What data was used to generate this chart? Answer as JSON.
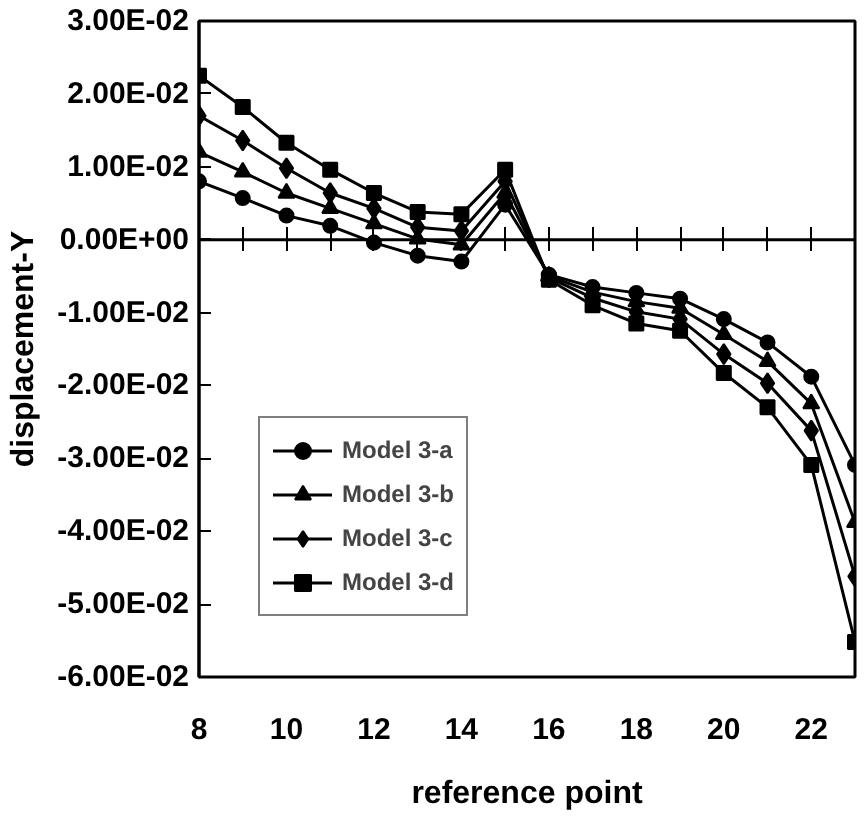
{
  "chart_data": {
    "type": "line",
    "xlabel": "reference point",
    "ylabel": "displacement-Y",
    "x": [
      8,
      9,
      10,
      11,
      12,
      13,
      14,
      15,
      16,
      17,
      18,
      19,
      20,
      21,
      22,
      23
    ],
    "series": [
      {
        "name": "Model 3-a",
        "color": "#000000",
        "marker": "circle",
        "values": [
          0.008,
          0.0057,
          0.0033,
          0.0019,
          -0.0004,
          -0.0022,
          -0.003,
          0.0048,
          -0.0048,
          -0.0065,
          -0.0073,
          -0.0081,
          -0.0109,
          -0.0141,
          -0.0188,
          -0.0309
        ]
      },
      {
        "name": "Model 3-b",
        "color": "#000000",
        "marker": "triangle",
        "values": [
          0.012,
          0.0093,
          0.0064,
          0.0043,
          0.0022,
          0.0001,
          -0.0007,
          0.0064,
          -0.005,
          -0.0072,
          -0.0085,
          -0.0094,
          -0.013,
          -0.0167,
          -0.0225,
          -0.0388
        ]
      },
      {
        "name": "Model 3-c",
        "color": "#000000",
        "marker": "diamond",
        "values": [
          0.017,
          0.0136,
          0.0098,
          0.0064,
          0.0043,
          0.0017,
          0.0012,
          0.008,
          -0.0052,
          -0.008,
          -0.0099,
          -0.0109,
          -0.0157,
          -0.0197,
          -0.0262,
          -0.0462
        ]
      },
      {
        "name": "Model 3-d",
        "color": "#000000",
        "marker": "square",
        "values": [
          0.0225,
          0.0182,
          0.0133,
          0.0096,
          0.0064,
          0.0038,
          0.0035,
          0.0096,
          -0.0055,
          -0.009,
          -0.0115,
          -0.0125,
          -0.0183,
          -0.023,
          -0.0309,
          -0.0552
        ]
      }
    ],
    "xlim": [
      8,
      23
    ],
    "xticks": [
      8,
      10,
      12,
      14,
      16,
      18,
      20,
      22
    ],
    "ylim": [
      -0.06,
      0.03
    ],
    "yticks": [
      {
        "value": 0.03,
        "label": "3.00E-02"
      },
      {
        "value": 0.02,
        "label": "2.00E-02"
      },
      {
        "value": 0.01,
        "label": "1.00E-02"
      },
      {
        "value": 0,
        "label": "0.00E+00"
      },
      {
        "value": -0.01,
        "label": "-1.00E-02"
      },
      {
        "value": -0.02,
        "label": "-2.00E-02"
      },
      {
        "value": -0.03,
        "label": "-3.00E-02"
      },
      {
        "value": -0.04,
        "label": "-4.00E-02"
      },
      {
        "value": -0.05,
        "label": "-5.00E-02"
      },
      {
        "value": -0.06,
        "label": "-6.00E-02"
      }
    ],
    "grid": false,
    "ref_lines": [
      {
        "axis": "y",
        "value": 0
      }
    ],
    "legend": "bottom left",
    "line_style": "solid"
  }
}
